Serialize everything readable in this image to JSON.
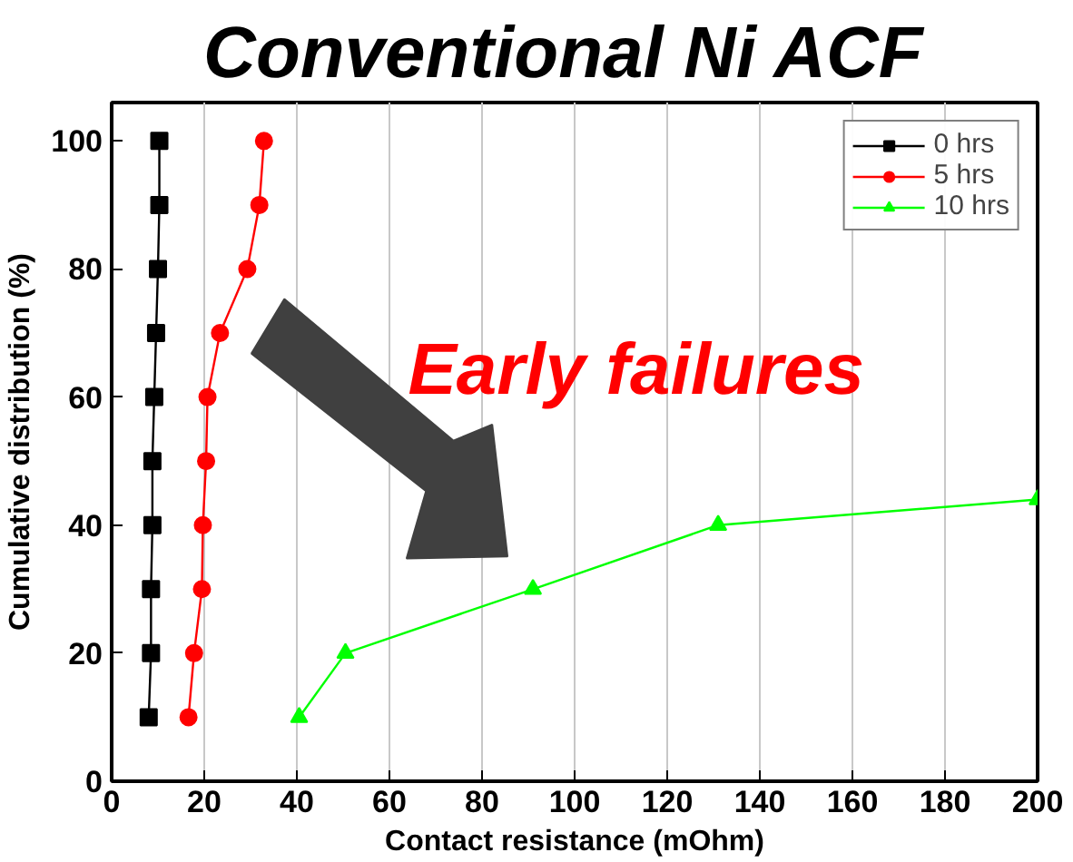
{
  "chart_data": {
    "type": "line",
    "title": "Conventional  Ni ACF",
    "xlabel": "Contact resistance (mOhm)",
    "ylabel": "Cumulative distribution (%)",
    "xlim": [
      0,
      200
    ],
    "ylim": [
      0,
      106
    ],
    "xticks": [
      0,
      20,
      40,
      60,
      80,
      100,
      120,
      140,
      160,
      180,
      200
    ],
    "yticks": [
      0,
      20,
      40,
      60,
      80,
      100
    ],
    "grid": "x",
    "legend": "top right",
    "annotations": [
      "Early failures"
    ],
    "series": [
      {
        "name": "0 hrs",
        "color": "#000000",
        "marker": "square",
        "x": [
          8.0,
          8.5,
          8.5,
          8.8,
          8.8,
          9.2,
          9.6,
          10.0,
          10.3,
          10.3
        ],
        "values": [
          10,
          20,
          30,
          40,
          50,
          60,
          70,
          80,
          90,
          100
        ]
      },
      {
        "name": "5 hrs",
        "color": "#ff0000",
        "marker": "circle",
        "x": [
          16.6,
          17.8,
          19.5,
          19.7,
          20.4,
          20.7,
          23.4,
          29.3,
          31.9,
          32.9
        ],
        "values": [
          10,
          20,
          30,
          40,
          50,
          60,
          70,
          80,
          90,
          100
        ]
      },
      {
        "name": "10 hrs",
        "color": "#00ff00",
        "marker": "triangle",
        "x": [
          40.5,
          50.5,
          91,
          131,
          200
        ],
        "values": [
          10,
          20,
          30,
          40,
          44
        ]
      }
    ]
  }
}
